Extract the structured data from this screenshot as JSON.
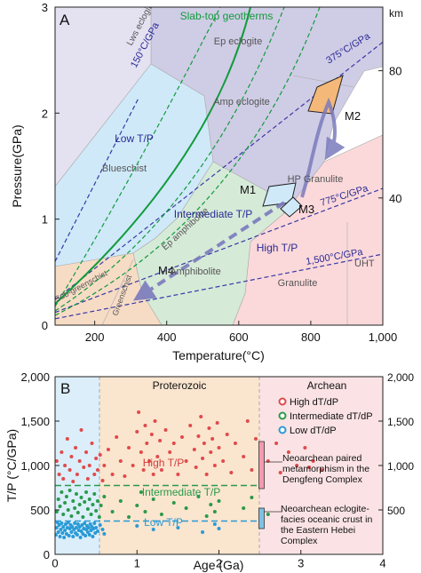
{
  "chart_data": [
    {
      "type": "diagram",
      "panel_label": "A",
      "xlabel": "Temperature(°C)",
      "ylabel": "Pressure(GPa)",
      "right_axis_label": "km",
      "xlim": [
        90,
        1000
      ],
      "ylim": [
        0,
        3
      ],
      "x_ticks": [
        200,
        400,
        600,
        800,
        "1,000"
      ],
      "y_ticks": [
        0,
        1,
        2,
        3
      ],
      "right_ticks": [
        {
          "label": "40",
          "p": 1.2
        },
        {
          "label": "80",
          "p": 2.4
        }
      ],
      "geotherm_label": "Slab-top geotherms",
      "gradient_lines": [
        {
          "label": "150°C/GPa",
          "p_at_t": [
            [
              90,
              0.6
            ],
            [
              320,
              2.13
            ]
          ]
        },
        {
          "label": "375°C/GPa",
          "p_at_t": [
            [
              90,
              0.24
            ],
            [
              1000,
              2.67
            ]
          ]
        },
        {
          "label": "775°C/GPa",
          "p_at_t": [
            [
              90,
              0.12
            ],
            [
              1000,
              1.29
            ]
          ]
        },
        {
          "label": "1,500°C/GPa",
          "p_at_t": [
            [
              90,
              0.06
            ],
            [
              1000,
              0.67
            ]
          ]
        }
      ],
      "facies": [
        {
          "name": "Lws eclogite"
        },
        {
          "name": "Ep eclogite"
        },
        {
          "name": "Amp eclogite"
        },
        {
          "name": "Blueschist"
        },
        {
          "name": "HP Granulite"
        },
        {
          "name": "Ep amphibolite"
        },
        {
          "name": "Amphibolite"
        },
        {
          "name": "Granulite"
        },
        {
          "name": "Greenschist"
        },
        {
          "name": "Sub-greenschist"
        },
        {
          "name": "UHT"
        }
      ],
      "regime_labels": [
        "Low T/P",
        "Intermediate T/P",
        "High T/P"
      ],
      "stages": [
        {
          "label": "M1",
          "t": 680,
          "p": 1.15
        },
        {
          "label": "M2",
          "t": 855,
          "p": 1.9
        },
        {
          "label": "M3",
          "t": 745,
          "p": 1.1
        },
        {
          "label": "M4",
          "t": 370,
          "p": 0.45
        }
      ],
      "colors": {
        "lawsonite_eclogite": "#e4e1f1",
        "eclogite": "#cfcce5",
        "blueschist": "#cfe9f8",
        "granulite": "#fbd9da",
        "amphibolite": "#d6ead8",
        "greenschist": "#f7dcc5",
        "m2_box": "#f4b878",
        "path": "#7b7bbd",
        "gradient": "#3a3aa6",
        "geotherm": "#129b3d"
      }
    },
    {
      "type": "scatter",
      "panel_label": "B",
      "xlabel": "Age (Ga)",
      "ylabel": "T/P (°C/GPa)",
      "xlim": [
        0,
        4
      ],
      "ylim": [
        0,
        2000
      ],
      "x_ticks": [
        "0",
        "1",
        "2",
        "3",
        "4"
      ],
      "y_ticks": [
        "0",
        "500",
        "1,000",
        "1,500",
        "2,000"
      ],
      "right_ticks": [
        "500",
        "1,000",
        "1,500",
        "2,000"
      ],
      "eon_labels": [
        "Proterozoic",
        "Archean"
      ],
      "eon_boundaries": [
        0.541,
        2.5
      ],
      "thresholds": [
        775,
        375
      ],
      "region_labels": [
        "High T/P",
        "Intermediate T/P",
        "Low T/P"
      ],
      "legend": [
        {
          "label": "High dT/dP",
          "color": "#e04a4a"
        },
        {
          "label": "Intermediate dT/dP",
          "color": "#2a9a4a"
        },
        {
          "label": "Low dT/dP",
          "color": "#2a9ad6"
        }
      ],
      "annotations": [
        "Neoarchean paired metamorphism in the Dengfeng Complex",
        "Neoarchean eclogite-facies oceanic crust in the Eastern Hebei Complex"
      ],
      "bars": [
        {
          "x": 2.52,
          "range": [
            740,
            1270
          ],
          "color": "#f29ab0"
        },
        {
          "x": 2.52,
          "range": [
            290,
            520
          ],
          "color": "#7fc1e4"
        }
      ],
      "series": [
        {
          "name": "High dT/dP",
          "points": [
            [
              0.02,
              1050
            ],
            [
              0.05,
              900
            ],
            [
              0.08,
              1150
            ],
            [
              0.1,
              850
            ],
            [
              0.12,
              1000
            ],
            [
              0.15,
              1300
            ],
            [
              0.18,
              950
            ],
            [
              0.2,
              1100
            ],
            [
              0.22,
              820
            ],
            [
              0.25,
              1200
            ],
            [
              0.27,
              900
            ],
            [
              0.3,
              1050
            ],
            [
              0.32,
              1400
            ],
            [
              0.35,
              980
            ],
            [
              0.38,
              1150
            ],
            [
              0.4,
              850
            ],
            [
              0.42,
              1000
            ],
            [
              0.45,
              1250
            ],
            [
              0.48,
              900
            ],
            [
              0.5,
              1080
            ],
            [
              0.52,
              950
            ],
            [
              0.55,
              1120
            ],
            [
              0.58,
              830
            ],
            [
              0.6,
              1000
            ],
            [
              0.65,
              1180
            ],
            [
              0.7,
              900
            ],
            [
              0.75,
              1320
            ],
            [
              0.8,
              1050
            ],
            [
              0.85,
              880
            ],
            [
              0.9,
              1200
            ],
            [
              0.95,
              1000
            ],
            [
              1.0,
              1380
            ],
            [
              1.02,
              1600
            ],
            [
              1.05,
              1150
            ],
            [
              1.08,
              950
            ],
            [
              1.1,
              1450
            ],
            [
              1.12,
              1250
            ],
            [
              1.15,
              1050
            ],
            [
              1.18,
              1350
            ],
            [
              1.2,
              900
            ],
            [
              1.22,
              1500
            ],
            [
              1.25,
              1100
            ],
            [
              1.28,
              1280
            ],
            [
              1.3,
              950
            ],
            [
              1.35,
              1400
            ],
            [
              1.4,
              1150
            ],
            [
              1.45,
              1250
            ],
            [
              1.5,
              900
            ],
            [
              1.55,
              1320
            ],
            [
              1.6,
              1050
            ],
            [
              1.65,
              1450
            ],
            [
              1.7,
              1180
            ],
            [
              1.72,
              980
            ],
            [
              1.75,
              1330
            ],
            [
              1.78,
              1550
            ],
            [
              1.8,
              1080
            ],
            [
              1.82,
              1250
            ],
            [
              1.85,
              900
            ],
            [
              1.88,
              1420
            ],
            [
              1.9,
              1150
            ],
            [
              1.92,
              1300
            ],
            [
              1.95,
              1000
            ],
            [
              1.98,
              1480
            ],
            [
              2.0,
              1200
            ],
            [
              2.05,
              1050
            ],
            [
              2.1,
              1350
            ],
            [
              2.15,
              920
            ],
            [
              2.2,
              1250
            ],
            [
              2.3,
              1100
            ],
            [
              2.35,
              1500
            ],
            [
              2.4,
              950
            ],
            [
              2.45,
              1300
            ],
            [
              2.6,
              1050
            ],
            [
              2.7,
              1250
            ],
            [
              2.75,
              920
            ],
            [
              2.85,
              1150
            ],
            [
              2.95,
              1000
            ],
            [
              3.05,
              1200
            ],
            [
              3.1,
              980
            ],
            [
              3.15,
              1050
            ],
            [
              3.25,
              950
            ]
          ]
        },
        {
          "name": "Intermediate dT/dP",
          "points": [
            [
              0.02,
              480
            ],
            [
              0.04,
              620
            ],
            [
              0.06,
              540
            ],
            [
              0.08,
              700
            ],
            [
              0.1,
              450
            ],
            [
              0.12,
              580
            ],
            [
              0.14,
              650
            ],
            [
              0.16,
              500
            ],
            [
              0.18,
              720
            ],
            [
              0.2,
              430
            ],
            [
              0.22,
              600
            ],
            [
              0.24,
              520
            ],
            [
              0.26,
              680
            ],
            [
              0.28,
              470
            ],
            [
              0.3,
              560
            ],
            [
              0.32,
              640
            ],
            [
              0.34,
              420
            ],
            [
              0.36,
              590
            ],
            [
              0.38,
              700
            ],
            [
              0.4,
              510
            ],
            [
              0.42,
              620
            ],
            [
              0.44,
              450
            ],
            [
              0.46,
              560
            ],
            [
              0.48,
              680
            ],
            [
              0.5,
              490
            ],
            [
              0.52,
              600
            ],
            [
              0.54,
              420
            ],
            [
              0.56,
              550
            ],
            [
              0.6,
              650
            ],
            [
              0.7,
              480
            ],
            [
              0.8,
              600
            ],
            [
              0.9,
              420
            ],
            [
              1.0,
              550
            ],
            [
              1.05,
              700
            ],
            [
              1.1,
              480
            ],
            [
              1.2,
              620
            ],
            [
              1.3,
              450
            ],
            [
              1.45,
              580
            ],
            [
              1.6,
              520
            ],
            [
              1.75,
              650
            ],
            [
              1.85,
              430
            ],
            [
              1.9,
              560
            ],
            [
              1.95,
              480
            ],
            [
              2.0,
              600
            ],
            [
              2.3,
              520
            ],
            [
              2.4,
              640
            ],
            [
              2.6,
              450
            ]
          ]
        },
        {
          "name": "Low dT/dP",
          "points": [
            [
              0.01,
              220
            ],
            [
              0.02,
              300
            ],
            [
              0.03,
              360
            ],
            [
              0.04,
              250
            ],
            [
              0.05,
              330
            ],
            [
              0.06,
              200
            ],
            [
              0.07,
              280
            ],
            [
              0.08,
              350
            ],
            [
              0.09,
              240
            ],
            [
              0.1,
              310
            ],
            [
              0.11,
              190
            ],
            [
              0.12,
              270
            ],
            [
              0.13,
              340
            ],
            [
              0.14,
              230
            ],
            [
              0.15,
              300
            ],
            [
              0.16,
              360
            ],
            [
              0.17,
              210
            ],
            [
              0.18,
              290
            ],
            [
              0.19,
              330
            ],
            [
              0.2,
              250
            ],
            [
              0.21,
              310
            ],
            [
              0.22,
              200
            ],
            [
              0.23,
              280
            ],
            [
              0.24,
              350
            ],
            [
              0.25,
              240
            ],
            [
              0.26,
              300
            ],
            [
              0.27,
              220
            ],
            [
              0.28,
              340
            ],
            [
              0.29,
              270
            ],
            [
              0.3,
              310
            ],
            [
              0.31,
              190
            ],
            [
              0.32,
              260
            ],
            [
              0.33,
              330
            ],
            [
              0.34,
              230
            ],
            [
              0.35,
              290
            ],
            [
              0.36,
              350
            ],
            [
              0.37,
              210
            ],
            [
              0.38,
              280
            ],
            [
              0.39,
              320
            ],
            [
              0.4,
              250
            ],
            [
              0.41,
              300
            ],
            [
              0.42,
              220
            ],
            [
              0.43,
              340
            ],
            [
              0.44,
              270
            ],
            [
              0.45,
              310
            ],
            [
              0.46,
              200
            ],
            [
              0.47,
              290
            ],
            [
              0.48,
              350
            ],
            [
              0.49,
              240
            ],
            [
              0.5,
              300
            ],
            [
              0.52,
              260
            ],
            [
              0.55,
              330
            ],
            [
              0.58,
              280
            ],
            [
              0.6,
              230
            ],
            [
              1.0,
              320
            ],
            [
              1.2,
              280
            ],
            [
              1.5,
              300
            ],
            [
              1.8,
              250
            ],
            [
              1.95,
              340
            ],
            [
              2.0,
              290
            ]
          ]
        }
      ]
    }
  ]
}
